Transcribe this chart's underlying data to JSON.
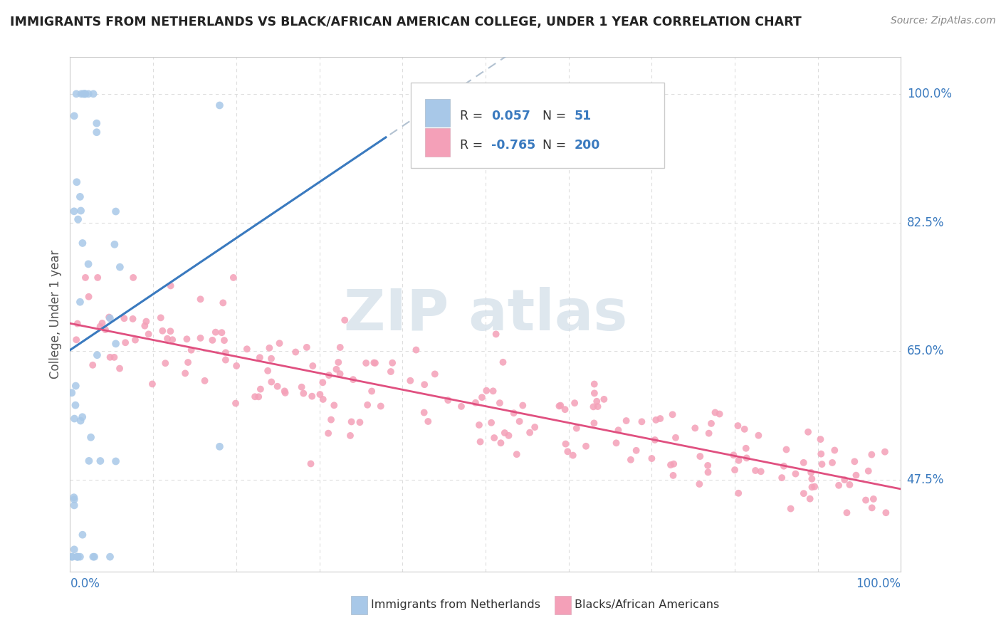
{
  "title": "IMMIGRANTS FROM NETHERLANDS VS BLACK/AFRICAN AMERICAN COLLEGE, UNDER 1 YEAR CORRELATION CHART",
  "source": "Source: ZipAtlas.com",
  "ylabel": "College, Under 1 year",
  "blue_color": "#a8c8e8",
  "pink_color": "#f4a0b8",
  "blue_line_color": "#3a7abf",
  "pink_line_color": "#e05080",
  "dashed_line_color": "#aabbcc",
  "legend_text_color": "#3a7abf",
  "legend_label_color": "#333333",
  "ytick_color": "#3a7abf",
  "xtick_color": "#3a7abf",
  "watermark_color": "#d0dde8",
  "grid_color": "#dddddd",
  "ylabel_color": "#555555",
  "title_color": "#222222",
  "source_color": "#888888",
  "xlim": [
    0.0,
    1.0
  ],
  "ylim": [
    0.35,
    1.05
  ],
  "ytick_positions": [
    0.475,
    0.65,
    0.825,
    1.0
  ],
  "ytick_labels": [
    "47.5%",
    "65.0%",
    "82.5%",
    "100.0%"
  ],
  "xtick_labels_left": "0.0%",
  "xtick_labels_right": "100.0%",
  "legend_r1_label": "R = ",
  "legend_r1_val": "0.057",
  "legend_n1_label": "N = ",
  "legend_n1_val": "51",
  "legend_r2_label": "R = ",
  "legend_r2_val": "-0.765",
  "legend_n2_label": "N = ",
  "legend_n2_val": "200",
  "bottom_label1": "Immigrants from Netherlands",
  "bottom_label2": "Blacks/African Americans"
}
